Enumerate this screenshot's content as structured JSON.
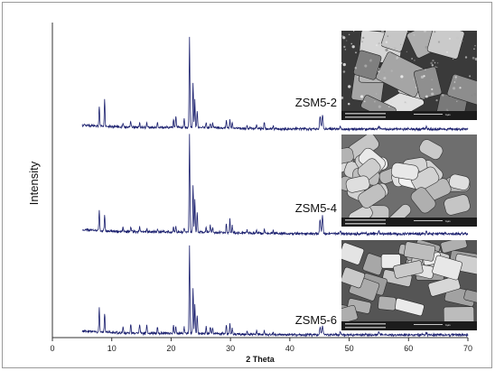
{
  "chart_data": {
    "type": "line",
    "title": "",
    "xlabel": "2 Theta",
    "ylabel": "Intensity",
    "xlim": [
      0,
      70
    ],
    "xticks": [
      0,
      10,
      20,
      30,
      40,
      50,
      60,
      70
    ],
    "xtick_labels": [
      "0",
      "10",
      "20",
      "30",
      "40",
      "50",
      "60",
      "70"
    ],
    "y_ticks_visible": false,
    "grid": false,
    "line_color": "#1a1f6e",
    "x_range_measured": [
      5,
      70
    ],
    "peaks_2theta": [
      7.9,
      8.8,
      11.9,
      13.2,
      14.7,
      15.9,
      17.7,
      20.4,
      20.8,
      22.2,
      23.1,
      23.7,
      24.0,
      24.4,
      25.9,
      26.6,
      27.0,
      29.3,
      29.9,
      30.3,
      32.8,
      34.4,
      35.7,
      37.2,
      45.1,
      45.5,
      48.5,
      55.0,
      63.0
    ],
    "series": [
      {
        "name": "ZSM5-2",
        "relative_intensity": [
          0.22,
          0.3,
          0.05,
          0.07,
          0.05,
          0.06,
          0.05,
          0.09,
          0.12,
          0.1,
          1.0,
          0.5,
          0.3,
          0.18,
          0.06,
          0.05,
          0.05,
          0.08,
          0.09,
          0.06,
          0.04,
          0.04,
          0.07,
          0.03,
          0.14,
          0.16,
          0.03,
          0.03,
          0.03
        ]
      },
      {
        "name": "ZSM5-4",
        "relative_intensity": [
          0.22,
          0.16,
          0.04,
          0.05,
          0.06,
          0.04,
          0.03,
          0.05,
          0.05,
          0.04,
          1.0,
          0.48,
          0.34,
          0.2,
          0.06,
          0.08,
          0.05,
          0.09,
          0.14,
          0.07,
          0.03,
          0.03,
          0.05,
          0.03,
          0.14,
          0.18,
          0.03,
          0.03,
          0.03
        ]
      },
      {
        "name": "ZSM5-6",
        "relative_intensity": [
          0.28,
          0.22,
          0.07,
          0.1,
          0.1,
          0.09,
          0.07,
          0.1,
          0.08,
          0.07,
          1.0,
          0.52,
          0.34,
          0.22,
          0.08,
          0.08,
          0.06,
          0.1,
          0.12,
          0.07,
          0.04,
          0.04,
          0.05,
          0.03,
          0.08,
          0.1,
          0.03,
          0.03,
          0.03
        ]
      }
    ],
    "inset_images": [
      {
        "name": "ZSM5-2",
        "depicts": "SEM micrograph of irregular intergrown plate-like crystal aggregates",
        "tone": "dark",
        "scale_bar": "1µm"
      },
      {
        "name": "ZSM5-4",
        "depicts": "SEM micrograph of uniform rounded coffin-shaped crystals",
        "tone": "bright",
        "scale_bar": "1µm"
      },
      {
        "name": "ZSM5-6",
        "depicts": "SEM micrograph of stacked rectangular prismatic crystals",
        "tone": "medium",
        "scale_bar": "1µm"
      }
    ]
  }
}
